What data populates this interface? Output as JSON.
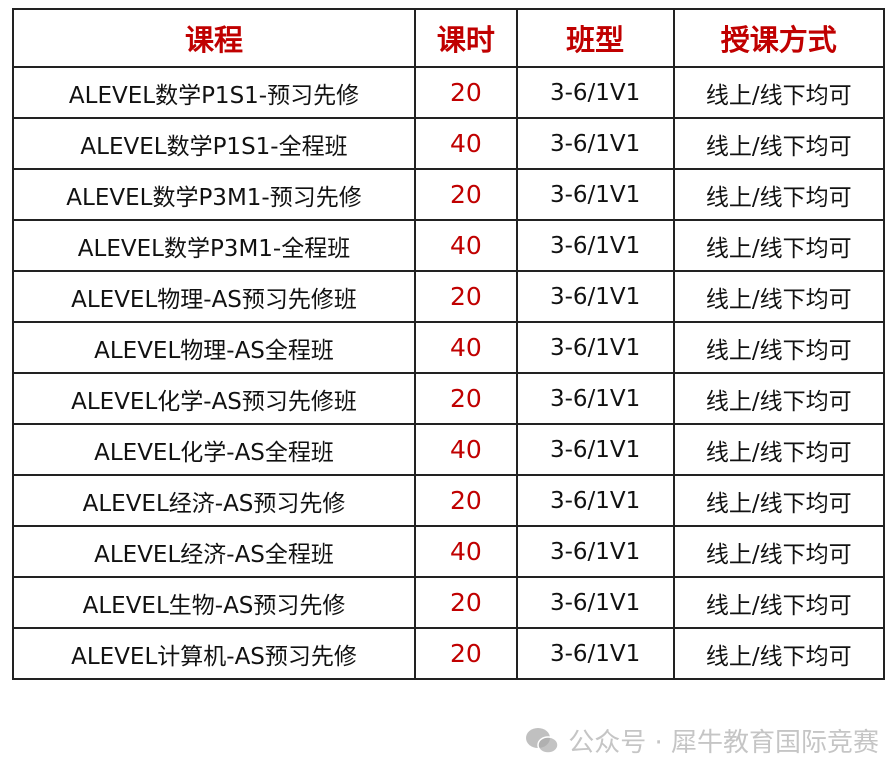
{
  "table": {
    "headers": [
      "课程",
      "课时",
      "班型",
      "授课方式"
    ],
    "rows": [
      [
        "ALEVEL数学P1S1-预习先修",
        "20",
        "3-6/1V1",
        "线上/线下均可"
      ],
      [
        "ALEVEL数学P1S1-全程班",
        "40",
        "3-6/1V1",
        "线上/线下均可"
      ],
      [
        "ALEVEL数学P3M1-预习先修",
        "20",
        "3-6/1V1",
        "线上/线下均可"
      ],
      [
        "ALEVEL数学P3M1-全程班",
        "40",
        "3-6/1V1",
        "线上/线下均可"
      ],
      [
        "ALEVEL物理-AS预习先修班",
        "20",
        "3-6/1V1",
        "线上/线下均可"
      ],
      [
        "ALEVEL物理-AS全程班",
        "40",
        "3-6/1V1",
        "线上/线下均可"
      ],
      [
        "ALEVEL化学-AS预习先修班",
        "20",
        "3-6/1V1",
        "线上/线下均可"
      ],
      [
        "ALEVEL化学-AS全程班",
        "40",
        "3-6/1V1",
        "线上/线下均可"
      ],
      [
        "ALEVEL经济-AS预习先修",
        "20",
        "3-6/1V1",
        "线上/线下均可"
      ],
      [
        "ALEVEL经济-AS全程班",
        "40",
        "3-6/1V1",
        "线上/线下均可"
      ],
      [
        "ALEVEL生物-AS预习先修",
        "20",
        "3-6/1V1",
        "线上/线下均可"
      ],
      [
        "ALEVEL计算机-AS预习先修",
        "20",
        "3-6/1V1",
        "线上/线下均可"
      ]
    ]
  },
  "watermark": {
    "icon": "wechat-icon",
    "text": "公众号 · 犀牛教育国际竞赛"
  },
  "colors": {
    "header_text": "#c00000",
    "hours_text": "#c00000",
    "border": "#222222"
  }
}
